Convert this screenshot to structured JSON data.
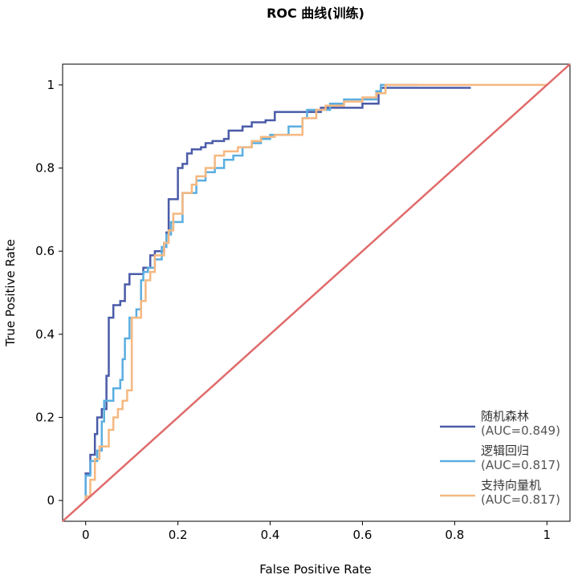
{
  "chart_data": {
    "type": "line",
    "title": "ROC 曲线(训练)",
    "xlabel": "False Positive Rate",
    "ylabel": "True Positive Rate",
    "xlim": [
      -0.05,
      1.05
    ],
    "ylim": [
      -0.05,
      1.05
    ],
    "x_ticks": [
      "0",
      "0.2",
      "0.4",
      "0.6",
      "0.8",
      "1"
    ],
    "y_ticks": [
      "0",
      "0.2",
      "0.4",
      "0.6",
      "0.8",
      "1"
    ],
    "legend_position": "bottom-right",
    "diagonal": {
      "color": "#e06b6b",
      "points": [
        [
          -0.05,
          -0.05
        ],
        [
          1.05,
          1.05
        ]
      ]
    },
    "series": [
      {
        "name": "随机森林",
        "auc_label": "(AUC=0.849)",
        "color": "#4a5ba8",
        "points": [
          [
            0,
            0
          ],
          [
            0,
            0.065
          ],
          [
            0.01,
            0.065
          ],
          [
            0.01,
            0.11
          ],
          [
            0.02,
            0.11
          ],
          [
            0.02,
            0.16
          ],
          [
            0.025,
            0.16
          ],
          [
            0.025,
            0.2
          ],
          [
            0.035,
            0.2
          ],
          [
            0.035,
            0.22
          ],
          [
            0.045,
            0.22
          ],
          [
            0.045,
            0.3
          ],
          [
            0.05,
            0.3
          ],
          [
            0.05,
            0.44
          ],
          [
            0.06,
            0.44
          ],
          [
            0.06,
            0.47
          ],
          [
            0.075,
            0.47
          ],
          [
            0.075,
            0.48
          ],
          [
            0.085,
            0.48
          ],
          [
            0.085,
            0.52
          ],
          [
            0.095,
            0.52
          ],
          [
            0.095,
            0.545
          ],
          [
            0.125,
            0.545
          ],
          [
            0.125,
            0.56
          ],
          [
            0.14,
            0.56
          ],
          [
            0.14,
            0.59
          ],
          [
            0.15,
            0.59
          ],
          [
            0.15,
            0.6
          ],
          [
            0.17,
            0.6
          ],
          [
            0.17,
            0.62
          ],
          [
            0.175,
            0.62
          ],
          [
            0.175,
            0.645
          ],
          [
            0.18,
            0.645
          ],
          [
            0.18,
            0.725
          ],
          [
            0.2,
            0.725
          ],
          [
            0.2,
            0.8
          ],
          [
            0.21,
            0.8
          ],
          [
            0.21,
            0.81
          ],
          [
            0.22,
            0.81
          ],
          [
            0.22,
            0.835
          ],
          [
            0.23,
            0.835
          ],
          [
            0.23,
            0.845
          ],
          [
            0.25,
            0.845
          ],
          [
            0.25,
            0.85
          ],
          [
            0.26,
            0.85
          ],
          [
            0.26,
            0.86
          ],
          [
            0.275,
            0.86
          ],
          [
            0.275,
            0.865
          ],
          [
            0.3,
            0.865
          ],
          [
            0.3,
            0.87
          ],
          [
            0.31,
            0.87
          ],
          [
            0.31,
            0.89
          ],
          [
            0.34,
            0.89
          ],
          [
            0.34,
            0.9
          ],
          [
            0.36,
            0.9
          ],
          [
            0.36,
            0.91
          ],
          [
            0.39,
            0.91
          ],
          [
            0.39,
            0.915
          ],
          [
            0.41,
            0.915
          ],
          [
            0.41,
            0.935
          ],
          [
            0.51,
            0.935
          ],
          [
            0.51,
            0.945
          ],
          [
            0.6,
            0.945
          ],
          [
            0.6,
            0.955
          ],
          [
            0.635,
            0.955
          ],
          [
            0.635,
            0.98
          ],
          [
            0.64,
            0.98
          ],
          [
            0.64,
            0.993
          ],
          [
            0.835,
            0.993
          ]
        ]
      },
      {
        "name": "逻辑回归",
        "auc_label": "(AUC=0.817)",
        "color": "#5aaee0",
        "points": [
          [
            0,
            0
          ],
          [
            0,
            0.06
          ],
          [
            0.01,
            0.06
          ],
          [
            0.01,
            0.095
          ],
          [
            0.025,
            0.095
          ],
          [
            0.025,
            0.12
          ],
          [
            0.035,
            0.12
          ],
          [
            0.035,
            0.19
          ],
          [
            0.04,
            0.19
          ],
          [
            0.04,
            0.24
          ],
          [
            0.06,
            0.24
          ],
          [
            0.06,
            0.27
          ],
          [
            0.075,
            0.27
          ],
          [
            0.075,
            0.29
          ],
          [
            0.08,
            0.29
          ],
          [
            0.08,
            0.34
          ],
          [
            0.085,
            0.34
          ],
          [
            0.085,
            0.39
          ],
          [
            0.095,
            0.39
          ],
          [
            0.095,
            0.44
          ],
          [
            0.11,
            0.44
          ],
          [
            0.11,
            0.46
          ],
          [
            0.12,
            0.46
          ],
          [
            0.12,
            0.53
          ],
          [
            0.125,
            0.53
          ],
          [
            0.125,
            0.55
          ],
          [
            0.135,
            0.55
          ],
          [
            0.135,
            0.56
          ],
          [
            0.15,
            0.56
          ],
          [
            0.15,
            0.58
          ],
          [
            0.165,
            0.58
          ],
          [
            0.165,
            0.61
          ],
          [
            0.175,
            0.61
          ],
          [
            0.175,
            0.64
          ],
          [
            0.185,
            0.64
          ],
          [
            0.185,
            0.67
          ],
          [
            0.21,
            0.67
          ],
          [
            0.21,
            0.74
          ],
          [
            0.24,
            0.74
          ],
          [
            0.24,
            0.77
          ],
          [
            0.26,
            0.77
          ],
          [
            0.26,
            0.79
          ],
          [
            0.28,
            0.79
          ],
          [
            0.28,
            0.8
          ],
          [
            0.3,
            0.8
          ],
          [
            0.3,
            0.82
          ],
          [
            0.32,
            0.82
          ],
          [
            0.32,
            0.83
          ],
          [
            0.34,
            0.83
          ],
          [
            0.34,
            0.85
          ],
          [
            0.36,
            0.85
          ],
          [
            0.36,
            0.86
          ],
          [
            0.38,
            0.86
          ],
          [
            0.38,
            0.87
          ],
          [
            0.4,
            0.87
          ],
          [
            0.4,
            0.88
          ],
          [
            0.44,
            0.88
          ],
          [
            0.44,
            0.9
          ],
          [
            0.47,
            0.9
          ],
          [
            0.47,
            0.92
          ],
          [
            0.48,
            0.92
          ],
          [
            0.48,
            0.94
          ],
          [
            0.53,
            0.94
          ],
          [
            0.53,
            0.955
          ],
          [
            0.56,
            0.955
          ],
          [
            0.56,
            0.965
          ],
          [
            0.63,
            0.965
          ],
          [
            0.63,
            0.985
          ],
          [
            0.64,
            0.985
          ],
          [
            0.64,
            1.0
          ],
          [
            0.72,
            1.0
          ]
        ]
      },
      {
        "name": "支持向量机",
        "auc_label": "(AUC=0.817)",
        "color": "#f5b880",
        "points": [
          [
            0,
            0
          ],
          [
            0,
            0.01
          ],
          [
            0.01,
            0.01
          ],
          [
            0.01,
            0.05
          ],
          [
            0.02,
            0.05
          ],
          [
            0.02,
            0.1
          ],
          [
            0.03,
            0.1
          ],
          [
            0.03,
            0.13
          ],
          [
            0.05,
            0.13
          ],
          [
            0.05,
            0.17
          ],
          [
            0.06,
            0.17
          ],
          [
            0.06,
            0.2
          ],
          [
            0.07,
            0.2
          ],
          [
            0.07,
            0.22
          ],
          [
            0.08,
            0.22
          ],
          [
            0.08,
            0.24
          ],
          [
            0.09,
            0.24
          ],
          [
            0.09,
            0.265
          ],
          [
            0.1,
            0.265
          ],
          [
            0.1,
            0.44
          ],
          [
            0.12,
            0.44
          ],
          [
            0.12,
            0.48
          ],
          [
            0.13,
            0.48
          ],
          [
            0.13,
            0.53
          ],
          [
            0.14,
            0.53
          ],
          [
            0.14,
            0.55
          ],
          [
            0.15,
            0.55
          ],
          [
            0.15,
            0.59
          ],
          [
            0.17,
            0.59
          ],
          [
            0.17,
            0.62
          ],
          [
            0.18,
            0.62
          ],
          [
            0.18,
            0.65
          ],
          [
            0.19,
            0.65
          ],
          [
            0.19,
            0.69
          ],
          [
            0.21,
            0.69
          ],
          [
            0.21,
            0.74
          ],
          [
            0.23,
            0.74
          ],
          [
            0.23,
            0.76
          ],
          [
            0.24,
            0.76
          ],
          [
            0.24,
            0.78
          ],
          [
            0.26,
            0.78
          ],
          [
            0.26,
            0.8
          ],
          [
            0.28,
            0.8
          ],
          [
            0.28,
            0.83
          ],
          [
            0.3,
            0.83
          ],
          [
            0.3,
            0.84
          ],
          [
            0.33,
            0.84
          ],
          [
            0.33,
            0.85
          ],
          [
            0.36,
            0.85
          ],
          [
            0.36,
            0.865
          ],
          [
            0.38,
            0.865
          ],
          [
            0.38,
            0.875
          ],
          [
            0.41,
            0.875
          ],
          [
            0.41,
            0.88
          ],
          [
            0.47,
            0.88
          ],
          [
            0.47,
            0.92
          ],
          [
            0.5,
            0.92
          ],
          [
            0.5,
            0.94
          ],
          [
            0.52,
            0.94
          ],
          [
            0.52,
            0.95
          ],
          [
            0.56,
            0.95
          ],
          [
            0.56,
            0.96
          ],
          [
            0.6,
            0.96
          ],
          [
            0.6,
            0.97
          ],
          [
            0.63,
            0.97
          ],
          [
            0.63,
            0.98
          ],
          [
            0.65,
            0.98
          ],
          [
            0.65,
            1.0
          ],
          [
            1.0,
            1.0
          ]
        ]
      }
    ]
  }
}
